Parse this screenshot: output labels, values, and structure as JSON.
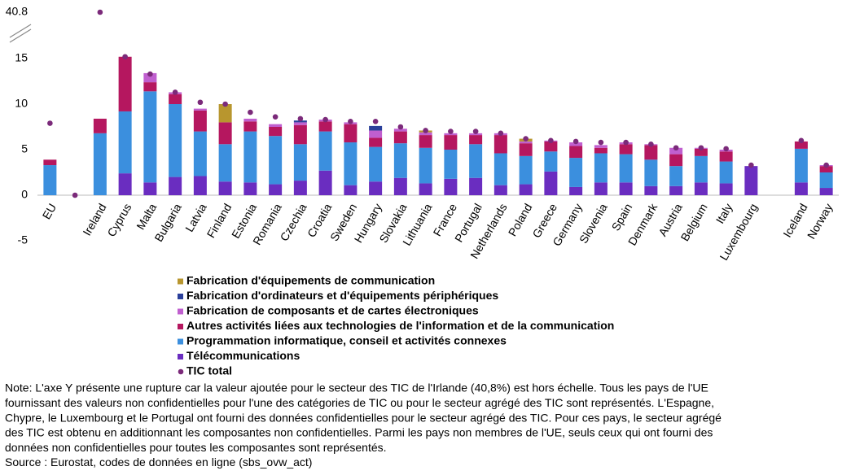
{
  "chart_data": {
    "type": "stacked_bar",
    "categories": [
      "EU",
      null,
      "Ireland",
      "Cyprus",
      "Malta",
      "Bulgaria",
      "Latvia",
      "Finland",
      "Estonia",
      "Romania",
      "Czechia",
      "Croatia",
      "Sweden",
      "Hungary",
      "Slovakia",
      "Lithuania",
      "France",
      "Portugal",
      "Netherlands",
      "Poland",
      "Greece",
      "Germany",
      "Slovenia",
      "Spain",
      "Denmark",
      "Austria",
      "Belgium",
      "Italy",
      "Luxembourg",
      null,
      "Iceland",
      "Norway"
    ],
    "series": [
      {
        "name": "Télécommunications",
        "color": "#6a2dc0",
        "values": [
          null,
          null,
          null,
          2.4,
          1.4,
          2.0,
          2.1,
          1.5,
          1.4,
          1.2,
          1.6,
          2.7,
          1.1,
          1.5,
          1.9,
          1.3,
          1.8,
          1.9,
          1.1,
          1.2,
          2.6,
          0.9,
          1.4,
          1.4,
          1.0,
          1.0,
          1.4,
          1.3,
          3.2,
          null,
          1.4,
          0.8
        ]
      },
      {
        "name": "Programmation informatique, conseil et activités connexes",
        "color": "#3b8fde",
        "values": [
          3.3,
          null,
          6.8,
          6.8,
          10.0,
          8.0,
          4.9,
          4.1,
          5.6,
          5.3,
          4.0,
          4.3,
          4.7,
          3.8,
          3.8,
          3.9,
          3.2,
          3.7,
          3.5,
          3.1,
          2.2,
          3.2,
          3.2,
          3.1,
          2.9,
          2.2,
          2.9,
          2.4,
          null,
          null,
          3.7,
          1.7
        ]
      },
      {
        "name": "Autres activités liées aux technologies de l'information et de la communication",
        "color": "#b5175f",
        "values": [
          0.6,
          null,
          1.6,
          6.0,
          1.0,
          1.1,
          2.3,
          2.4,
          1.1,
          1.0,
          2.1,
          1.1,
          2.0,
          1.0,
          1.3,
          1.4,
          1.6,
          1.0,
          2.0,
          1.4,
          1.1,
          1.3,
          0.6,
          1.1,
          1.6,
          1.3,
          0.8,
          1.1,
          null,
          null,
          0.8,
          0.7
        ]
      },
      {
        "name": "Fabrication de composants et de cartes électroniques",
        "color": "#c05fcf",
        "values": [
          null,
          null,
          null,
          null,
          1.0,
          0.2,
          0.2,
          null,
          0.3,
          0.3,
          0.3,
          0.2,
          0.2,
          0.8,
          0.3,
          0.3,
          0.2,
          0.2,
          0.2,
          0.2,
          0.1,
          0.4,
          0.3,
          0.2,
          0.1,
          0.7,
          0.1,
          0.2,
          null,
          null,
          null,
          0.1
        ]
      },
      {
        "name": "Fabrication d'ordinateurs et d'équipements périphériques",
        "color": "#2a3f9a",
        "values": [
          null,
          null,
          null,
          null,
          null,
          null,
          null,
          null,
          null,
          null,
          0.2,
          null,
          null,
          0.5,
          null,
          null,
          null,
          null,
          null,
          null,
          null,
          null,
          null,
          null,
          null,
          null,
          null,
          null,
          null,
          null,
          null,
          null
        ]
      },
      {
        "name": "Fabrication d'équipements de communication",
        "color": "#b8962e",
        "values": [
          null,
          null,
          null,
          null,
          null,
          null,
          null,
          2.0,
          null,
          null,
          null,
          null,
          null,
          null,
          null,
          0.2,
          null,
          null,
          null,
          0.3,
          null,
          null,
          null,
          null,
          null,
          null,
          null,
          null,
          null,
          null,
          null,
          null
        ]
      },
      {
        "name": "TIC total",
        "color": "#7b2a7a",
        "marker": "dot",
        "values": [
          7.9,
          0,
          40.8,
          15.2,
          13.3,
          11.3,
          10.2,
          10.0,
          9.1,
          8.6,
          8.4,
          8.3,
          8.1,
          8.1,
          7.5,
          7.1,
          7.0,
          7.0,
          6.8,
          6.2,
          6.0,
          5.9,
          5.8,
          5.8,
          5.6,
          5.2,
          5.2,
          5.1,
          3.3,
          null,
          6.0,
          3.3
        ]
      }
    ],
    "ylim": [
      -5,
      40.8
    ],
    "yticks": [
      -5,
      0,
      5,
      10,
      15,
      40.8
    ],
    "axis_break": true,
    "grid": false,
    "note": [
      "Note: L'axe Y présente une rupture car la valeur ajoutée pour le secteur des TIC de l'Irlande (40,8%) est hors échelle.  Tous les pays de l'UE",
      "fournissant des valeurs non confidentielles pour l'une des catégories de TIC ou pour le secteur agrégé des TIC sont représentés. L'Espagne,",
      "Chypre, le Luxembourg et le Portugal ont fourni des données confidentielles pour le secteur agrégé des TIC. Pour ces pays, le secteur agrégé",
      "des TIC est obtenu en additionnant les composantes non confidentielles. Parmi les pays non membres de l'UE, seuls ceux qui ont fourni des",
      "données non confidentielles pour toutes les composantes sont représentés."
    ],
    "source": "Source : Eurostat, codes de données en ligne (sbs_ovw_act)"
  }
}
